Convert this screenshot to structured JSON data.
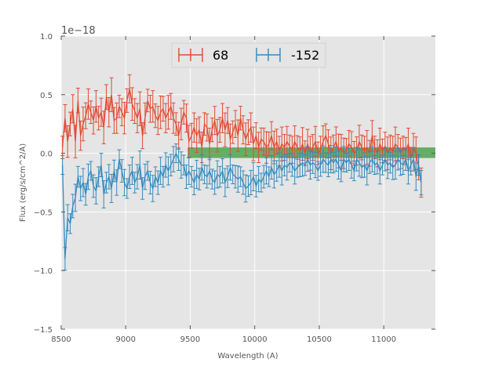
{
  "chart_data": {
    "type": "line",
    "title": "",
    "xlabel": "Wavelength (A)",
    "ylabel": "Flux (erg/s/cm^2/A)",
    "offset_text": "1e−18",
    "xlim": [
      8500,
      11400
    ],
    "ylim": [
      -1.5,
      1.0
    ],
    "x_ticks": [
      8500,
      9000,
      9500,
      10000,
      10500,
      11000
    ],
    "x_tick_labels": [
      "8500",
      "9000",
      "9500",
      "10000",
      "10500",
      "11000"
    ],
    "y_ticks": [
      1.0,
      0.5,
      0.0,
      -0.5,
      -1.0,
      -1.5
    ],
    "y_tick_labels": [
      "1.0",
      "0.5",
      "0.0",
      "−0.5",
      "−1.0",
      "−1.5"
    ],
    "grid": true,
    "legend_position": "top-center",
    "band": {
      "x_start": 9480,
      "x_end": 11400,
      "y_low": -0.04,
      "y_high": 0.05,
      "color": "#3a9a3a"
    },
    "series": [
      {
        "name": "68",
        "color": "#e24a33",
        "x_start": 8510,
        "x_step": 20,
        "values": [
          0.05,
          0.3,
          0.1,
          0.25,
          0.38,
          0.1,
          0.45,
          0.15,
          0.25,
          0.32,
          0.42,
          0.35,
          0.28,
          0.4,
          0.3,
          0.35,
          0.22,
          0.48,
          0.35,
          0.5,
          0.28,
          0.3,
          0.4,
          0.35,
          0.3,
          0.45,
          0.55,
          0.42,
          0.36,
          0.3,
          0.38,
          0.15,
          0.3,
          0.45,
          0.38,
          0.4,
          0.32,
          0.28,
          0.35,
          0.38,
          0.3,
          0.35,
          0.4,
          0.3,
          0.25,
          0.15,
          0.25,
          0.35,
          0.3,
          0.1,
          0.15,
          0.22,
          0.15,
          0.2,
          0.05,
          0.25,
          0.22,
          0.08,
          0.2,
          0.28,
          0.15,
          0.2,
          0.3,
          0.2,
          0.28,
          0.12,
          0.18,
          0.25,
          0.15,
          0.3,
          0.2,
          0.12,
          0.18,
          0.22,
          0.08,
          0.15,
          0.05,
          0.12,
          0.1,
          0.05,
          0.08,
          0.15,
          0.05,
          0.1,
          0.02,
          0.08,
          0.05,
          0.1,
          0.06,
          0.03,
          0.1,
          0.05,
          0.02,
          0.08,
          0.0,
          0.08,
          0.0,
          0.05,
          0.1,
          0.0,
          0.03,
          0.1,
          0.15,
          0.08,
          0.0,
          0.05,
          0.1,
          0.02,
          0.05,
          0.0,
          0.03,
          0.08,
          0.05,
          0.0,
          0.02,
          0.1,
          0.05,
          0.02,
          0.05,
          0.0,
          0.15,
          0.05,
          0.0,
          0.08,
          0.02,
          0.06,
          0.0,
          0.05,
          0.02,
          0.08,
          0.05,
          0.0,
          0.05,
          0.02,
          0.08,
          -0.05,
          0.05,
          0.0,
          -0.12,
          -0.25
        ]
      },
      {
        "name": "-152",
        "color": "#348abd",
        "x_start": 8510,
        "x_step": 20,
        "values": [
          -0.1,
          -0.9,
          -0.55,
          -0.6,
          -0.45,
          -0.38,
          -0.2,
          -0.3,
          -0.25,
          -0.35,
          -0.2,
          -0.15,
          -0.28,
          -0.32,
          -0.2,
          -0.1,
          -0.35,
          -0.25,
          -0.2,
          -0.3,
          -0.15,
          -0.25,
          -0.05,
          -0.15,
          -0.25,
          -0.3,
          -0.2,
          -0.15,
          -0.25,
          -0.2,
          -0.1,
          -0.3,
          -0.2,
          -0.15,
          -0.25,
          -0.3,
          -0.2,
          -0.25,
          -0.15,
          -0.2,
          -0.1,
          -0.15,
          -0.1,
          -0.05,
          0.0,
          -0.05,
          -0.1,
          -0.1,
          -0.2,
          -0.15,
          -0.2,
          -0.25,
          -0.18,
          -0.22,
          -0.12,
          -0.18,
          -0.2,
          -0.15,
          -0.22,
          -0.25,
          -0.18,
          -0.2,
          -0.15,
          -0.25,
          -0.2,
          -0.12,
          -0.18,
          -0.2,
          -0.22,
          -0.2,
          -0.25,
          -0.3,
          -0.28,
          -0.25,
          -0.2,
          -0.28,
          -0.22,
          -0.25,
          -0.2,
          -0.15,
          -0.2,
          -0.12,
          -0.18,
          -0.15,
          -0.1,
          -0.15,
          -0.1,
          -0.12,
          -0.08,
          -0.1,
          -0.15,
          -0.12,
          -0.1,
          -0.08,
          -0.1,
          -0.05,
          -0.1,
          -0.08,
          -0.1,
          -0.15,
          -0.1,
          -0.05,
          -0.08,
          -0.1,
          -0.05,
          -0.08,
          -0.05,
          -0.1,
          -0.15,
          -0.05,
          -0.08,
          -0.05,
          -0.1,
          -0.15,
          -0.05,
          -0.08,
          -0.12,
          -0.1,
          -0.15,
          -0.08,
          -0.05,
          -0.1,
          -0.08,
          -0.15,
          -0.1,
          -0.05,
          -0.1,
          -0.08,
          -0.12,
          -0.1,
          -0.05,
          -0.08,
          -0.1,
          -0.05,
          -0.15,
          -0.1,
          -0.05,
          -0.2,
          -0.1,
          -0.25
        ]
      }
    ]
  }
}
